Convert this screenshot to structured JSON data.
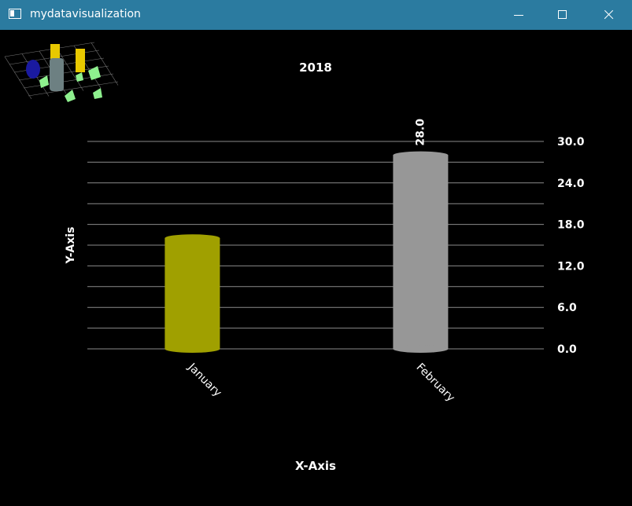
{
  "window": {
    "title": "mydatavisualization",
    "icon": "app-window-icon",
    "controls": [
      "minimize-icon",
      "maximize-icon",
      "close-icon"
    ]
  },
  "chart_data": {
    "type": "bar",
    "title": "2018",
    "xlabel": "X-Axis",
    "ylabel": "Y-Axis",
    "categories": [
      "January",
      "February"
    ],
    "values": [
      16.0,
      28.0
    ],
    "value_labels": [
      "",
      "28.0"
    ],
    "colors": [
      "#a0a000",
      "#979797"
    ],
    "ylim": [
      0,
      30
    ],
    "yticks": [
      0,
      6,
      12,
      18,
      24,
      30
    ],
    "ytick_labels": [
      "0.0",
      "6.0",
      "12.0",
      "18.0",
      "24.0",
      "30.0"
    ],
    "ygrid_step": 3,
    "grid": true,
    "yaxis_side": "right",
    "legend": "none"
  }
}
